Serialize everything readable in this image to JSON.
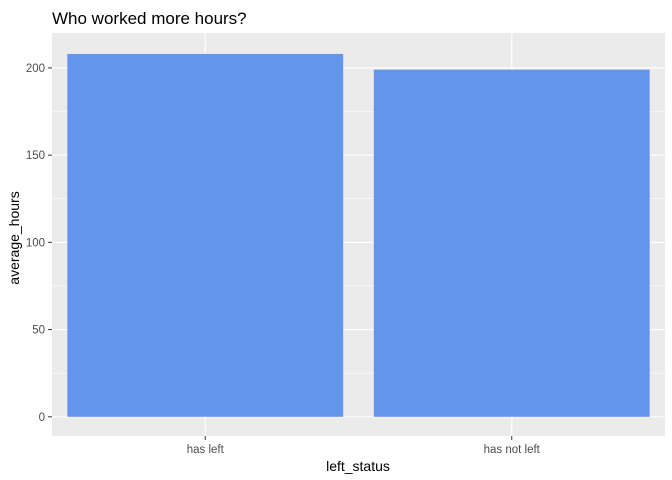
{
  "chart_data": {
    "type": "bar",
    "title": "Who worked more hours?",
    "xlabel": "left_status",
    "ylabel": "average_hours",
    "categories": [
      "has left",
      "has not left"
    ],
    "values": [
      208,
      199
    ],
    "ylim": [
      -11,
      220
    ],
    "yticks": [
      0,
      50,
      100,
      150,
      200
    ],
    "grid": true,
    "bar_color": "#6495ED",
    "panel_background": "#EBEBEB"
  }
}
